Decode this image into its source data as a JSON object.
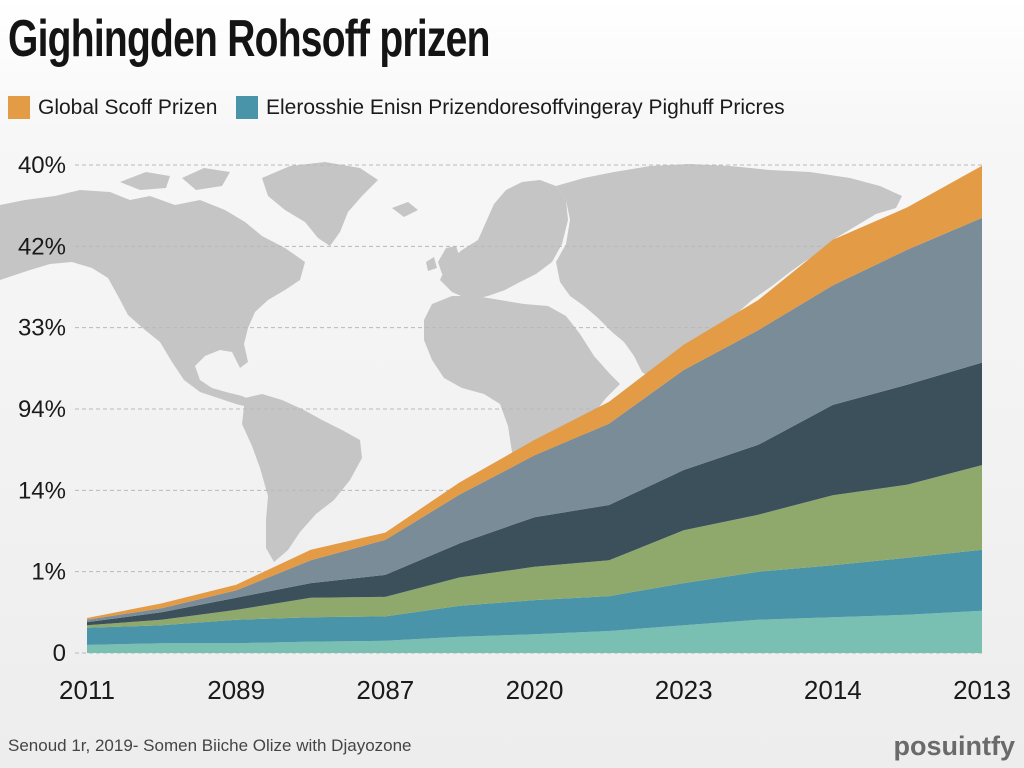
{
  "chart_data": {
    "type": "area",
    "stacked": true,
    "title": "Gighingden Rohsoff prizen",
    "xlabel": "",
    "ylabel": "",
    "categories": [
      "2011",
      "2089",
      "2087",
      "2020",
      "2023",
      "2014",
      "2013"
    ],
    "x": [
      0,
      0.5,
      1,
      1.5,
      2,
      2.5,
      3,
      3.5,
      4,
      4.5,
      5,
      5.5,
      6
    ],
    "y_ticks": [
      0,
      1,
      2,
      3,
      4,
      5,
      6
    ],
    "y_tick_labels": [
      "0",
      "1%",
      "14%",
      "94%",
      "33%",
      "42%",
      "40%"
    ],
    "ylim": [
      0,
      6
    ],
    "grid": true,
    "legend_position": "top-left",
    "series": [
      {
        "color": "#79bfb2",
        "values": [
          0.1,
          0.12,
          0.12,
          0.14,
          0.15,
          0.2,
          0.23,
          0.27,
          0.34,
          0.41,
          0.44,
          0.47,
          0.52
        ]
      },
      {
        "name": "Elerosshie Enisn Prizendoresoffvingeray Pighuff Pricres",
        "color": "#4a94aa",
        "values": [
          0.21,
          0.22,
          0.29,
          0.3,
          0.3,
          0.38,
          0.42,
          0.43,
          0.52,
          0.59,
          0.64,
          0.7,
          0.75
        ]
      },
      {
        "color": "#8fa96d",
        "values": [
          0.03,
          0.07,
          0.12,
          0.24,
          0.24,
          0.35,
          0.41,
          0.44,
          0.65,
          0.7,
          0.86,
          0.9,
          1.04
        ]
      },
      {
        "color": "#3c505b",
        "values": [
          0.04,
          0.09,
          0.15,
          0.18,
          0.27,
          0.42,
          0.61,
          0.68,
          0.74,
          0.86,
          1.11,
          1.23,
          1.26
        ]
      },
      {
        "color": "#7a8c98",
        "values": [
          0.03,
          0.05,
          0.09,
          0.28,
          0.43,
          0.6,
          0.76,
          1.0,
          1.23,
          1.41,
          1.47,
          1.66,
          1.78
        ]
      },
      {
        "name": "Global Scoff Prizen",
        "color": "#e49b46",
        "values": [
          0.02,
          0.06,
          0.07,
          0.13,
          0.09,
          0.15,
          0.19,
          0.27,
          0.31,
          0.37,
          0.56,
          0.52,
          0.64
        ]
      }
    ]
  },
  "footer": {
    "source": "Senoud 1r, 2019- Somen Biiche Olize with Djayozone",
    "brand": "posuintfy"
  }
}
